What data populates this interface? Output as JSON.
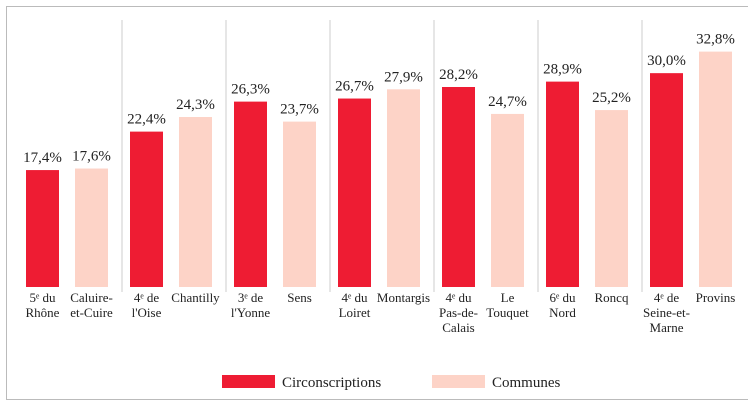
{
  "chart_data": {
    "type": "bar",
    "categories": [
      [
        [
          "5ᵉ du",
          "Rhône"
        ],
        [
          "Caluire-",
          "et-Cuire"
        ]
      ],
      [
        [
          "4ᵉ de",
          "l'Oise"
        ],
        [
          "Chantilly"
        ]
      ],
      [
        [
          "3ᵉ de",
          "l'Yonne"
        ],
        [
          "Sens"
        ]
      ],
      [
        [
          "4ᵉ du",
          "Loiret"
        ],
        [
          "Montargis"
        ]
      ],
      [
        [
          "4ᵉ du",
          "Pas-de-",
          "Calais"
        ],
        [
          "Le",
          "Touquet"
        ]
      ],
      [
        [
          "6ᵉ du",
          "Nord"
        ],
        [
          "Roncq"
        ]
      ],
      [
        [
          "4ᵉ de",
          "Seine-et-",
          "Marne"
        ],
        [
          "Provins"
        ]
      ]
    ],
    "series": [
      {
        "name": "Circonscriptions",
        "color": "#ee1c33",
        "values": [
          17.4,
          22.4,
          26.3,
          26.7,
          28.2,
          28.9,
          30.0
        ],
        "value_labels": [
          "17,4%",
          "22,4%",
          "26,3%",
          "26,7%",
          "28,2%",
          "28,9%",
          "30,0%"
        ]
      },
      {
        "name": "Communes",
        "color": "#fdd3c7",
        "values": [
          17.6,
          24.3,
          23.7,
          27.9,
          24.7,
          25.2,
          32.8
        ],
        "value_labels": [
          "17,6%",
          "24,3%",
          "23,7%",
          "27,9%",
          "24,7%",
          "25,2%",
          "32,8%"
        ]
      }
    ],
    "ylim": [
      2.2,
      36
    ]
  }
}
